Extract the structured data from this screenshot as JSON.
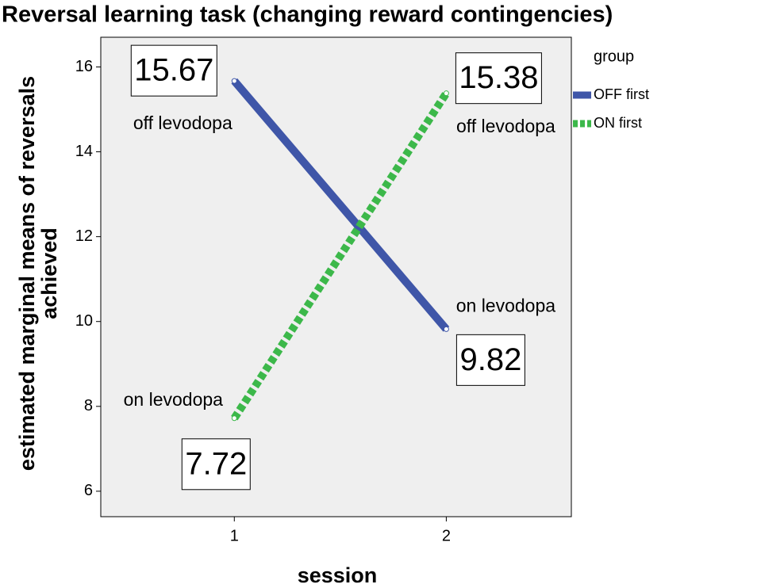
{
  "chart_data": {
    "type": "line",
    "title": "Reversal learning task (changing reward contingencies)",
    "x_label": "session",
    "y_label": [
      "estimated marginal means of reversals",
      "achieved"
    ],
    "x": [
      1,
      2
    ],
    "xlim": [
      0.37,
      2.59
    ],
    "xticks": [
      1,
      2
    ],
    "ylim": [
      5.4,
      16.7
    ],
    "yticks": [
      6,
      8,
      10,
      12,
      14,
      16
    ],
    "legend_title": "group",
    "legend_position": "right",
    "series": [
      {
        "name": "OFF first",
        "color": "#3f56a8",
        "dashed": false,
        "values": [
          15.67,
          9.82
        ],
        "point_labels": [
          "off levodopa",
          "on levodopa"
        ]
      },
      {
        "name": "ON first",
        "color": "#3cb84a",
        "dashed": true,
        "values": [
          7.72,
          15.38
        ],
        "point_labels": [
          "on levodopa",
          "off levodopa"
        ]
      }
    ]
  }
}
